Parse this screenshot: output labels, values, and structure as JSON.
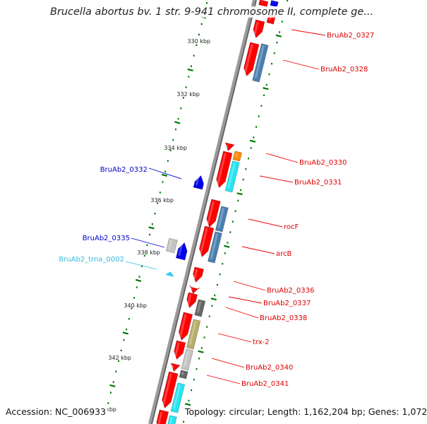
{
  "title": "Brucella abortus bv. 1 str. 9-941 chromosome II, complete ge...",
  "footer": {
    "accession": "Accession: NC_006933",
    "summary": "Topology: circular; Length: 1,162,204 bp; Genes: 1,072"
  },
  "colors": {
    "forward_gene": "#ff0000",
    "reverse_gene": "#0000ee",
    "trna": "#33ccee",
    "backbone": "#888888",
    "tick": "#007700"
  },
  "ticks": [
    {
      "label": "330 kbp"
    },
    {
      "label": "332 kbp"
    },
    {
      "label": "334 kbp"
    },
    {
      "label": "336 kbp"
    },
    {
      "label": "338 kbp"
    },
    {
      "label": "340 kbp"
    },
    {
      "label": "342 kbp"
    },
    {
      "label": "kbp"
    }
  ],
  "gene_labels": [
    {
      "text": "BruAb2_0327",
      "strand": "forward"
    },
    {
      "text": "BruAb2_0328",
      "strand": "forward"
    },
    {
      "text": "BruAb2_0330",
      "strand": "forward"
    },
    {
      "text": "BruAb2_0331",
      "strand": "forward"
    },
    {
      "text": "rocF",
      "strand": "forward"
    },
    {
      "text": "arcB",
      "strand": "forward"
    },
    {
      "text": "BruAb2_0336",
      "strand": "forward"
    },
    {
      "text": "BruAb2_0337",
      "strand": "forward"
    },
    {
      "text": "BruAb2_0338",
      "strand": "forward"
    },
    {
      "text": "trx-2",
      "strand": "forward"
    },
    {
      "text": "BruAb2_0340",
      "strand": "forward"
    },
    {
      "text": "BruAb2_0341",
      "strand": "forward"
    },
    {
      "text": "BruAb2_0332",
      "strand": "reverse"
    },
    {
      "text": "BruAb2_0335",
      "strand": "reverse"
    },
    {
      "text": "BruAb2_trna_0002",
      "strand": "trna"
    }
  ]
}
